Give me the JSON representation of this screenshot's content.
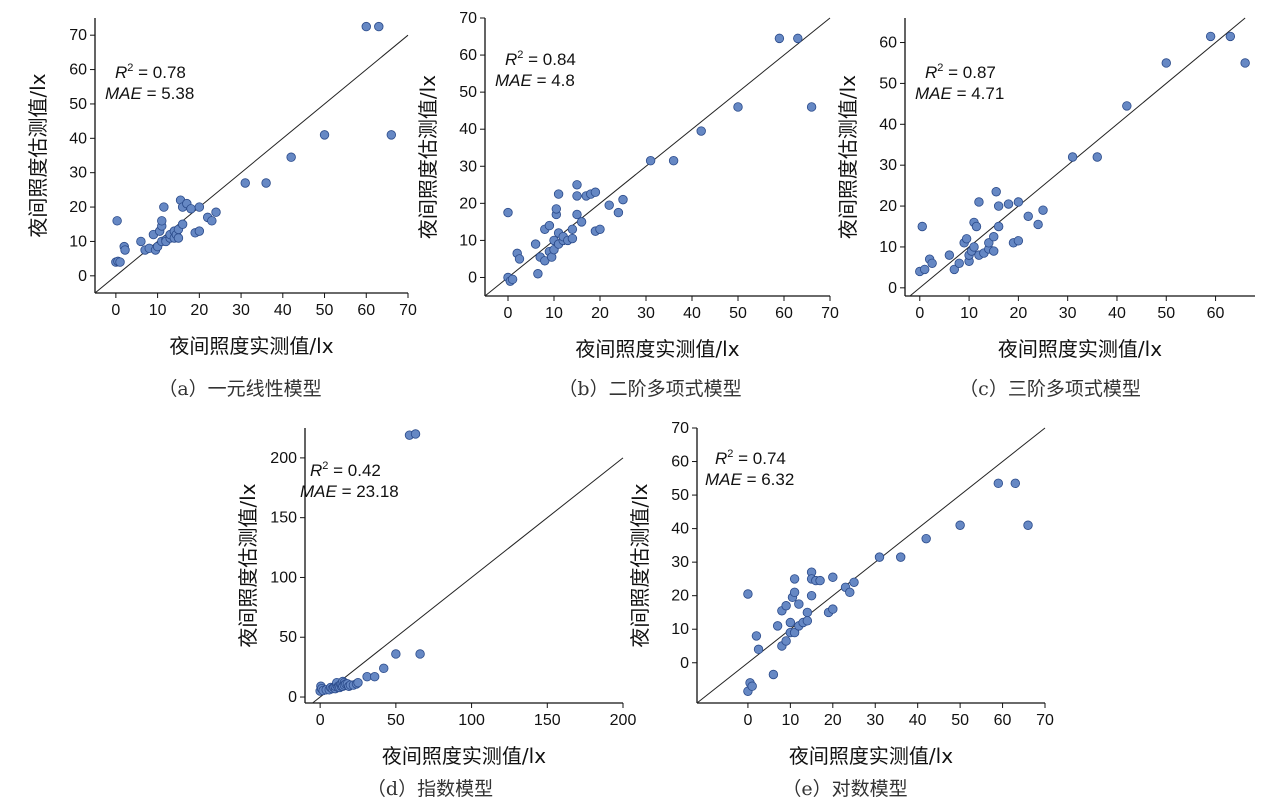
{
  "xlabel": "夜间照度实测值/lx",
  "ylabel": "夜间照度估测值/lx",
  "colors": {
    "point_fill": "#6688c4",
    "point_stroke": "#2a4a8a",
    "line": "#222222",
    "axis": "#111111"
  },
  "chart_data": [
    {
      "id": "a",
      "type": "scatter",
      "caption": "（a）一元线性模型",
      "stats": {
        "r2_label": "R",
        "r2_value": "= 0.78",
        "mae_label": "MAE",
        "mae_value": "= 5.38"
      },
      "xlim": [
        -5,
        70
      ],
      "ylim": [
        -5,
        75
      ],
      "xticks": [
        0,
        10,
        20,
        30,
        40,
        50,
        60,
        70
      ],
      "yticks": [
        0,
        10,
        20,
        30,
        40,
        50,
        60,
        70
      ],
      "points": [
        [
          0,
          4
        ],
        [
          0.3,
          16
        ],
        [
          0.5,
          4.2
        ],
        [
          1,
          4
        ],
        [
          2,
          8.5
        ],
        [
          2.2,
          7.5
        ],
        [
          6,
          10
        ],
        [
          7,
          7.5
        ],
        [
          8,
          8
        ],
        [
          9,
          12
        ],
        [
          9.5,
          7.5
        ],
        [
          10,
          8.5
        ],
        [
          10.5,
          13
        ],
        [
          11,
          10
        ],
        [
          11,
          14.5
        ],
        [
          11,
          16
        ],
        [
          11.5,
          20
        ],
        [
          12,
          10.5
        ],
        [
          12,
          10
        ],
        [
          13,
          11
        ],
        [
          13,
          12
        ],
        [
          14,
          11
        ],
        [
          14,
          13
        ],
        [
          14.5,
          12
        ],
        [
          15,
          11
        ],
        [
          15,
          13.5
        ],
        [
          15.5,
          22
        ],
        [
          16,
          15
        ],
        [
          16,
          20
        ],
        [
          17,
          21
        ],
        [
          18,
          19.5
        ],
        [
          19,
          12.5
        ],
        [
          20,
          20
        ],
        [
          20,
          13
        ],
        [
          22,
          17
        ],
        [
          23,
          16
        ],
        [
          24,
          18.5
        ],
        [
          31,
          27
        ],
        [
          36,
          27
        ],
        [
          42,
          34.5
        ],
        [
          50,
          41
        ],
        [
          60,
          72.5
        ],
        [
          63,
          72.5
        ],
        [
          66,
          41
        ]
      ]
    },
    {
      "id": "b",
      "type": "scatter",
      "caption": "（b）二阶多项式模型",
      "stats": {
        "r2_label": "R",
        "r2_value": "= 0.84",
        "mae_label": "MAE",
        "mae_value": "= 4.8"
      },
      "xlim": [
        -5,
        70
      ],
      "ylim": [
        -5,
        70
      ],
      "xticks": [
        0,
        10,
        20,
        30,
        40,
        50,
        60,
        70
      ],
      "yticks": [
        0,
        10,
        20,
        30,
        40,
        50,
        60,
        70
      ],
      "points": [
        [
          0,
          17.5
        ],
        [
          0,
          0
        ],
        [
          0.5,
          -1
        ],
        [
          1,
          -0.5
        ],
        [
          2,
          6.5
        ],
        [
          2.5,
          5
        ],
        [
          6,
          9
        ],
        [
          6.5,
          1
        ],
        [
          7,
          5.5
        ],
        [
          8,
          4.5
        ],
        [
          8,
          13
        ],
        [
          9,
          14
        ],
        [
          9,
          7
        ],
        [
          9.5,
          5.5
        ],
        [
          10,
          7.5
        ],
        [
          10,
          10
        ],
        [
          10.5,
          17
        ],
        [
          10.5,
          18.5
        ],
        [
          11,
          22.5
        ],
        [
          11,
          12
        ],
        [
          11,
          9
        ],
        [
          12,
          10
        ],
        [
          12,
          11
        ],
        [
          13,
          10
        ],
        [
          14,
          10.5
        ],
        [
          14,
          13
        ],
        [
          15,
          25
        ],
        [
          15,
          17
        ],
        [
          15,
          22
        ],
        [
          16,
          15
        ],
        [
          17,
          22
        ],
        [
          18,
          22.5
        ],
        [
          19,
          23
        ],
        [
          19,
          12.5
        ],
        [
          20,
          13
        ],
        [
          22,
          19.5
        ],
        [
          24,
          17.5
        ],
        [
          25,
          21
        ],
        [
          31,
          31.5
        ],
        [
          36,
          31.5
        ],
        [
          42,
          39.5
        ],
        [
          50,
          46
        ],
        [
          59,
          64.5
        ],
        [
          63,
          64.5
        ],
        [
          66,
          46
        ]
      ]
    },
    {
      "id": "c",
      "type": "scatter",
      "caption": "（c）三阶多项式模型",
      "stats": {
        "r2_label": "R",
        "r2_value": "= 0.87",
        "mae_label": "MAE",
        "mae_value": "= 4.71"
      },
      "xlim": [
        -3,
        68
      ],
      "ylim": [
        -2,
        66
      ],
      "xticks": [
        0,
        10,
        20,
        30,
        40,
        50,
        60
      ],
      "yticks": [
        0,
        10,
        20,
        30,
        40,
        50,
        60
      ],
      "points": [
        [
          0,
          4
        ],
        [
          0.5,
          15
        ],
        [
          1,
          4.5
        ],
        [
          2,
          7
        ],
        [
          2.5,
          6
        ],
        [
          6,
          8
        ],
        [
          7,
          4.5
        ],
        [
          8,
          6
        ],
        [
          9,
          11
        ],
        [
          9.5,
          12
        ],
        [
          10,
          6.5
        ],
        [
          10,
          8
        ],
        [
          10.5,
          9
        ],
        [
          11,
          10
        ],
        [
          11,
          16
        ],
        [
          11.5,
          15
        ],
        [
          12,
          21
        ],
        [
          12,
          8
        ],
        [
          13,
          8.5
        ],
        [
          14,
          9.5
        ],
        [
          14,
          11
        ],
        [
          15,
          9
        ],
        [
          15,
          12.5
        ],
        [
          15.5,
          23.5
        ],
        [
          16,
          20
        ],
        [
          16,
          15
        ],
        [
          18,
          20.5
        ],
        [
          19,
          11
        ],
        [
          20,
          21
        ],
        [
          20,
          11.5
        ],
        [
          22,
          17.5
        ],
        [
          24,
          15.5
        ],
        [
          25,
          19
        ],
        [
          31,
          32
        ],
        [
          36,
          32
        ],
        [
          42,
          44.5
        ],
        [
          50,
          55
        ],
        [
          59,
          61.5
        ],
        [
          63,
          61.5
        ],
        [
          66,
          55
        ]
      ]
    },
    {
      "id": "d",
      "type": "scatter",
      "caption": "（d）指数模型",
      "stats": {
        "r2_label": "R",
        "r2_value": "= 0.42",
        "mae_label": "MAE",
        "mae_value": "= 23.18"
      },
      "xlim": [
        -10,
        200
      ],
      "ylim": [
        -5,
        225
      ],
      "xticks": [
        0,
        50,
        100,
        150,
        200
      ],
      "yticks": [
        0,
        50,
        100,
        150,
        200
      ],
      "points": [
        [
          0,
          5
        ],
        [
          0.5,
          9
        ],
        [
          1,
          7
        ],
        [
          2,
          5.5
        ],
        [
          4,
          6
        ],
        [
          6,
          6
        ],
        [
          7,
          8
        ],
        [
          8,
          7
        ],
        [
          9,
          8
        ],
        [
          10,
          7
        ],
        [
          10,
          9
        ],
        [
          11,
          10
        ],
        [
          11,
          12
        ],
        [
          12,
          9
        ],
        [
          12,
          8
        ],
        [
          13,
          8
        ],
        [
          14,
          9
        ],
        [
          14,
          11
        ],
        [
          15,
          9
        ],
        [
          15,
          13
        ],
        [
          16,
          12
        ],
        [
          16,
          10
        ],
        [
          17,
          11
        ],
        [
          18,
          11
        ],
        [
          19,
          9
        ],
        [
          20,
          10
        ],
        [
          22,
          10
        ],
        [
          24,
          11
        ],
        [
          25,
          12
        ],
        [
          31,
          17
        ],
        [
          36,
          17
        ],
        [
          42,
          24
        ],
        [
          50,
          36
        ],
        [
          59,
          219
        ],
        [
          63,
          220
        ],
        [
          66,
          36
        ]
      ]
    },
    {
      "id": "e",
      "type": "scatter",
      "caption": "（e）对数模型",
      "stats": {
        "r2_label": "R",
        "r2_value": "= 0.74",
        "mae_label": "MAE",
        "mae_value": "= 6.32"
      },
      "xlim": [
        -12,
        70
      ],
      "ylim": [
        -12,
        70
      ],
      "xticks": [
        0,
        10,
        20,
        30,
        40,
        50,
        60,
        70
      ],
      "yticks": [
        0,
        10,
        20,
        30,
        40,
        50,
        60,
        70
      ],
      "points": [
        [
          0,
          20.5
        ],
        [
          0,
          -8.5
        ],
        [
          0.5,
          -6
        ],
        [
          1,
          -7
        ],
        [
          2,
          8
        ],
        [
          2.5,
          4
        ],
        [
          6,
          -3.5
        ],
        [
          7,
          11
        ],
        [
          8,
          5
        ],
        [
          8,
          15.5
        ],
        [
          9,
          17
        ],
        [
          9,
          6.5
        ],
        [
          10,
          9
        ],
        [
          10,
          12
        ],
        [
          10.5,
          19.5
        ],
        [
          11,
          21
        ],
        [
          11,
          25
        ],
        [
          11,
          9
        ],
        [
          12,
          11
        ],
        [
          12,
          17.5
        ],
        [
          13,
          12
        ],
        [
          14,
          15
        ],
        [
          14,
          12.5
        ],
        [
          15,
          27
        ],
        [
          15,
          20
        ],
        [
          15,
          25
        ],
        [
          16,
          24.5
        ],
        [
          17,
          24.5
        ],
        [
          19,
          15
        ],
        [
          20,
          25.5
        ],
        [
          20,
          16
        ],
        [
          23,
          22.5
        ],
        [
          24,
          21
        ],
        [
          25,
          24
        ],
        [
          31,
          31.5
        ],
        [
          36,
          31.5
        ],
        [
          42,
          37
        ],
        [
          50,
          41
        ],
        [
          59,
          53.5
        ],
        [
          63,
          53.5
        ],
        [
          66,
          41
        ]
      ]
    }
  ]
}
